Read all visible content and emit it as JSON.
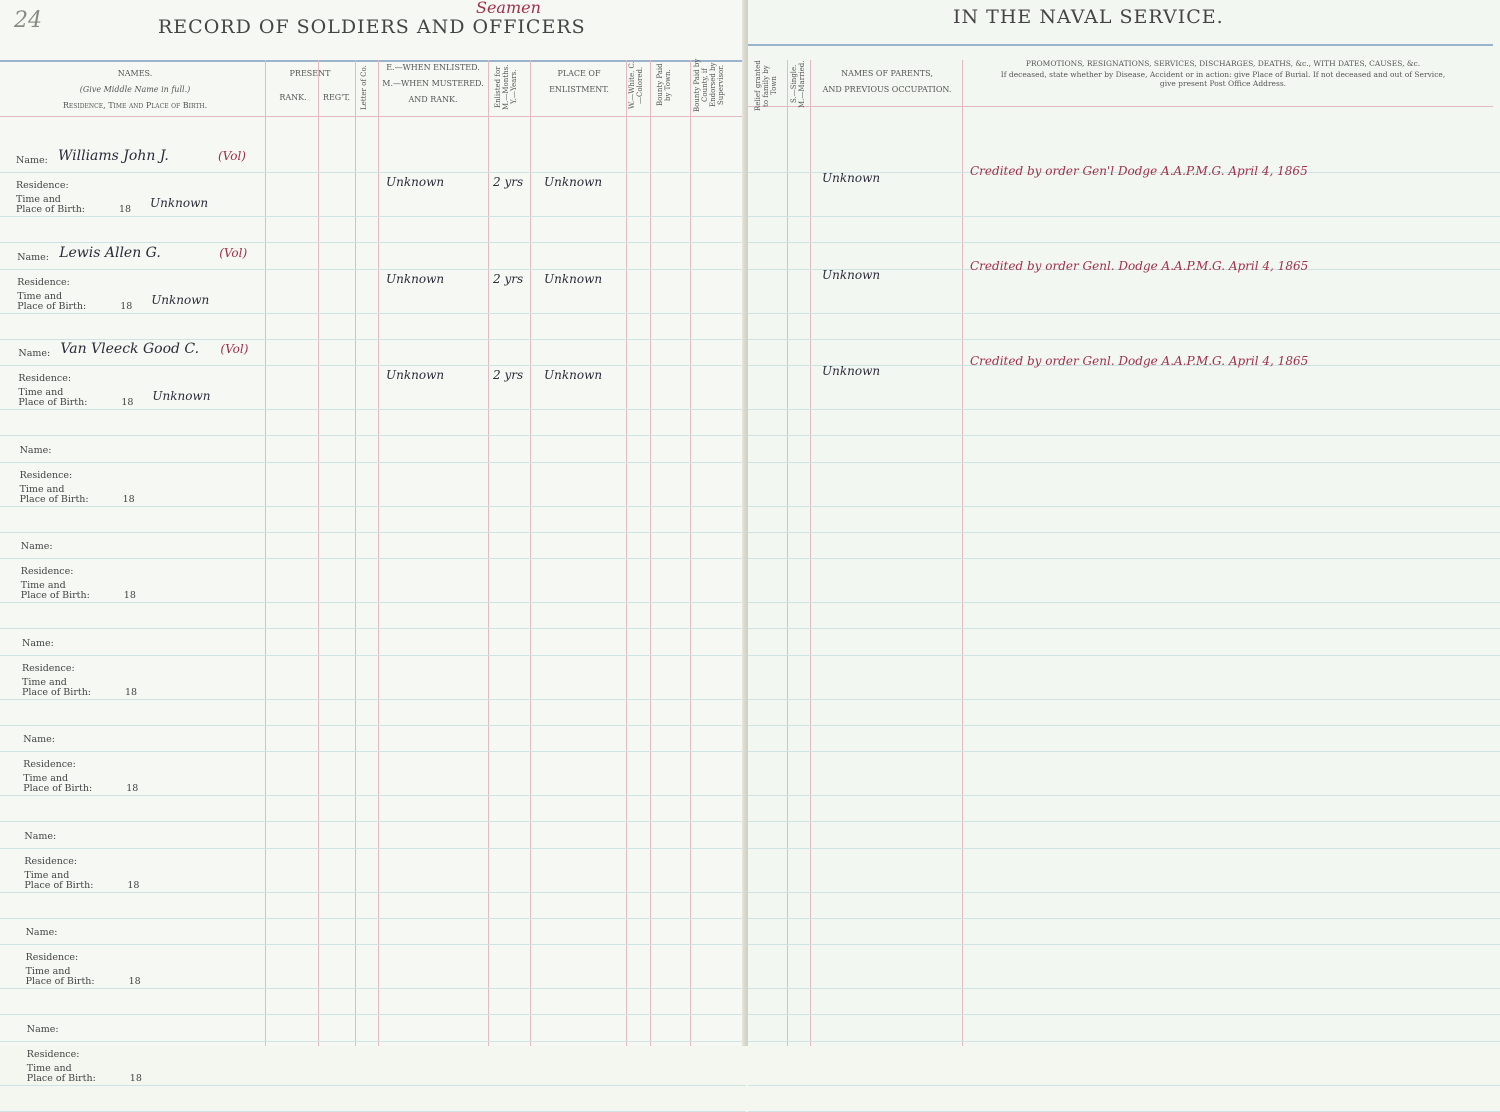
{
  "page_number": "24",
  "left_title": "RECORD OF SOLDIERS AND OFFICERS",
  "title_correction": "Seamen",
  "right_title": "IN THE NAVAL SERVICE.",
  "headers": {
    "names": "NAMES.",
    "names_note": "(Give Middle Name in full.)",
    "names_sub": "Residence, Time and Place of Birth.",
    "present": "PRESENT",
    "rank": "RANK.",
    "regt": "REG'T.",
    "letter_co": "Letter of Co.",
    "when_enlisted": "E.—WHEN ENLISTED.",
    "when_mustered": "M.—WHEN MUSTERED.",
    "and_rank": "AND RANK.",
    "enlisted_for": "Enlisted for M.—Months. Y.—Years.",
    "place_1": "PLACE OF",
    "place_2": "ENLISTMENT.",
    "white_colored": "W.—White. C.—Colored.",
    "bounty_town": "Bounty Paid by Town.",
    "bounty_county": "Bounty Paid by County, if Endorsed by Supervisor.",
    "relief": "Relief granted to family by Town",
    "single_married": "S.—Single. M.—Married.",
    "parents_1": "NAMES OF PARENTS,",
    "parents_2": "AND PREVIOUS OCCUPATION.",
    "promotions": "PROMOTIONS, RESIGNATIONS, SERVICES, DISCHARGES, DEATHS, &c., WITH DATES, CAUSES, &c.",
    "promotions_note": "If deceased, state whether by Disease, Accident or in action: give Place of Burial. If not deceased and out of Service, give present Post Office Address."
  },
  "labels": {
    "name": "Name:",
    "residence": "Residence:",
    "time_and": "Time and",
    "place_of_birth": "Place of Birth:",
    "year_prefix": "18"
  },
  "records": [
    {
      "name": "Williams John J.",
      "note": "(Vol)",
      "birth": "Unknown",
      "enlisted": "Unknown",
      "term": "2 yrs",
      "place": "Unknown",
      "parents": "Unknown",
      "remarks": "Credited by order Gen'l Dodge A.A.P.M.G. April 4, 1865"
    },
    {
      "name": "Lewis Allen G.",
      "note": "(Vol)",
      "birth": "Unknown",
      "enlisted": "Unknown",
      "term": "2 yrs",
      "place": "Unknown",
      "parents": "Unknown",
      "remarks": "Credited by order Genl. Dodge A.A.P.M.G. April 4, 1865"
    },
    {
      "name": "Van Vleeck Good C.",
      "note": "(Vol)",
      "birth": "Unknown",
      "enlisted": "Unknown",
      "term": "2 yrs",
      "place": "Unknown",
      "parents": "Unknown",
      "remarks": "Credited by order Genl. Dodge A.A.P.M.G. April 4, 1865"
    },
    {},
    {},
    {},
    {},
    {},
    {},
    {}
  ],
  "colors": {
    "ink": "#2b2b3a",
    "red_ink": "#a0304a",
    "pink_rule": "#e3b9c2",
    "blue_rule": "#9ab4cc"
  }
}
